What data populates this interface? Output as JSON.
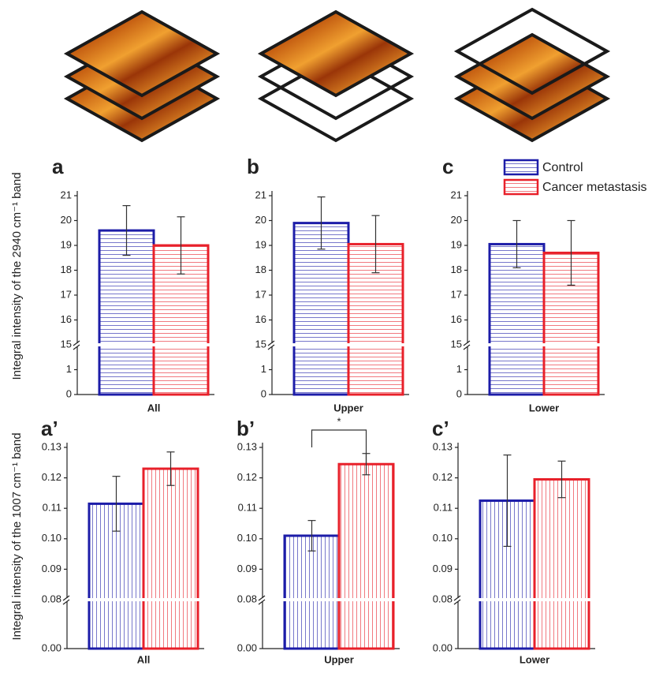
{
  "chart_data": [
    {
      "type": "bar",
      "panel": "a",
      "ylabel": "Integral intensity of the 2940 cm⁻¹ band",
      "categories": [
        "All"
      ],
      "series": [
        {
          "name": "Control",
          "color": "#1c1ca8",
          "values": [
            19.6
          ],
          "errors": [
            1.0
          ]
        },
        {
          "name": "Cancer metastasis",
          "color": "#e8202a",
          "values": [
            19.0
          ],
          "errors": [
            1.15
          ]
        }
      ],
      "ylim": [
        0,
        21
      ],
      "ybreak": [
        2,
        15
      ],
      "yticks": [
        0,
        1,
        15,
        16,
        17,
        18,
        19,
        20,
        21
      ],
      "hatch": "horizontal"
    },
    {
      "type": "bar",
      "panel": "b",
      "categories": [
        "Upper"
      ],
      "series": [
        {
          "name": "Control",
          "color": "#1c1ca8",
          "values": [
            19.9
          ],
          "errors": [
            1.05
          ]
        },
        {
          "name": "Cancer metastasis",
          "color": "#e8202a",
          "values": [
            19.05
          ],
          "errors": [
            1.15
          ]
        }
      ],
      "ylim": [
        0,
        21
      ],
      "ybreak": [
        2,
        15
      ],
      "yticks": [
        0,
        1,
        15,
        16,
        17,
        18,
        19,
        20,
        21
      ],
      "hatch": "horizontal"
    },
    {
      "type": "bar",
      "panel": "c",
      "categories": [
        "Lower"
      ],
      "legend": true,
      "series": [
        {
          "name": "Control",
          "color": "#1c1ca8",
          "values": [
            19.05
          ],
          "errors": [
            0.95
          ]
        },
        {
          "name": "Cancer metastasis",
          "color": "#e8202a",
          "values": [
            18.7
          ],
          "errors": [
            1.3
          ]
        }
      ],
      "ylim": [
        0,
        21
      ],
      "ybreak": [
        2,
        15
      ],
      "yticks": [
        0,
        1,
        15,
        16,
        17,
        18,
        19,
        20,
        21
      ],
      "hatch": "horizontal"
    },
    {
      "type": "bar",
      "panel": "a’",
      "ylabel": "Integral intensity of the 1007 cm⁻¹ band",
      "categories": [
        "All"
      ],
      "series": [
        {
          "name": "Control",
          "color": "#1c1ca8",
          "values": [
            0.1115
          ],
          "errors": [
            0.009
          ]
        },
        {
          "name": "Cancer metastasis",
          "color": "#e8202a",
          "values": [
            0.123
          ],
          "errors": [
            0.0055
          ]
        }
      ],
      "ylim": [
        0,
        0.13
      ],
      "ybreak": [
        0.02,
        0.08
      ],
      "yticks": [
        {
          "value": 0,
          "label": "0.00"
        },
        0.08,
        0.09,
        {
          "value": 0.1,
          "label": "0.10"
        },
        0.11,
        0.12,
        0.13
      ],
      "hatch": "vertical"
    },
    {
      "type": "bar",
      "panel": "b’",
      "categories": [
        "Upper"
      ],
      "annotation": "*",
      "series": [
        {
          "name": "Control",
          "color": "#1c1ca8",
          "values": [
            0.101
          ],
          "errors": [
            0.005
          ]
        },
        {
          "name": "Cancer metastasis",
          "color": "#e8202a",
          "values": [
            0.1245
          ],
          "errors": [
            0.0035
          ]
        }
      ],
      "ylim": [
        0,
        0.13
      ],
      "ybreak": [
        0.02,
        0.08
      ],
      "yticks": [
        {
          "value": 0,
          "label": "0.00"
        },
        0.08,
        0.09,
        {
          "value": 0.1,
          "label": "0.10"
        },
        0.11,
        0.12,
        0.13
      ],
      "hatch": "vertical"
    },
    {
      "type": "bar",
      "panel": "c’",
      "categories": [
        "Lower"
      ],
      "series": [
        {
          "name": "Control",
          "color": "#1c1ca8",
          "values": [
            0.1125
          ],
          "errors": [
            0.015
          ]
        },
        {
          "name": "Cancer metastasis",
          "color": "#e8202a",
          "values": [
            0.1195
          ],
          "errors": [
            0.006
          ]
        }
      ],
      "ylim": [
        0,
        0.13
      ],
      "ybreak": [
        0.02,
        0.08
      ],
      "yticks": [
        {
          "value": 0,
          "label": "0.00"
        },
        0.08,
        0.09,
        {
          "value": 0.1,
          "label": "0.10"
        },
        0.11,
        0.12,
        0.13
      ],
      "hatch": "vertical"
    }
  ]
}
